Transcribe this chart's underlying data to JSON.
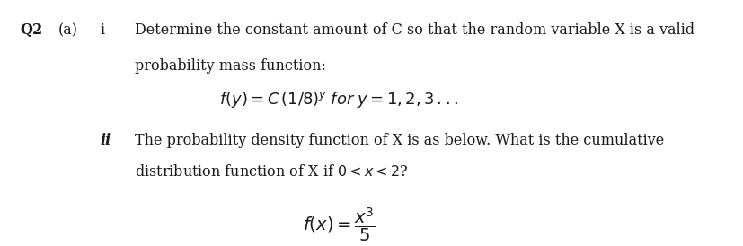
{
  "bg_color": "#f0f0f0",
  "text_color": "#1a1a1a",
  "q2_label": "Q2",
  "a_label": "(a)",
  "i_label": "i",
  "ii_label": "ii",
  "line1_i": "Determine the constant amount of C so that the random variable X is a valid",
  "line2_i": "probability mass function:",
  "formula_i": "$f(y) = C\\,(1/8)^{y}\\; for\\; y = 1, 2, 3\\,...$",
  "line1_ii": "The probability density function of X is as below. What is the cumulative",
  "line2_ii": "distribution function of X if $0{<}x{<}2$?",
  "formula_ii": "$f(x) = \\dfrac{x^{3}}{5}$",
  "fontsize_body": 11.5,
  "fontsize_formula": 13
}
